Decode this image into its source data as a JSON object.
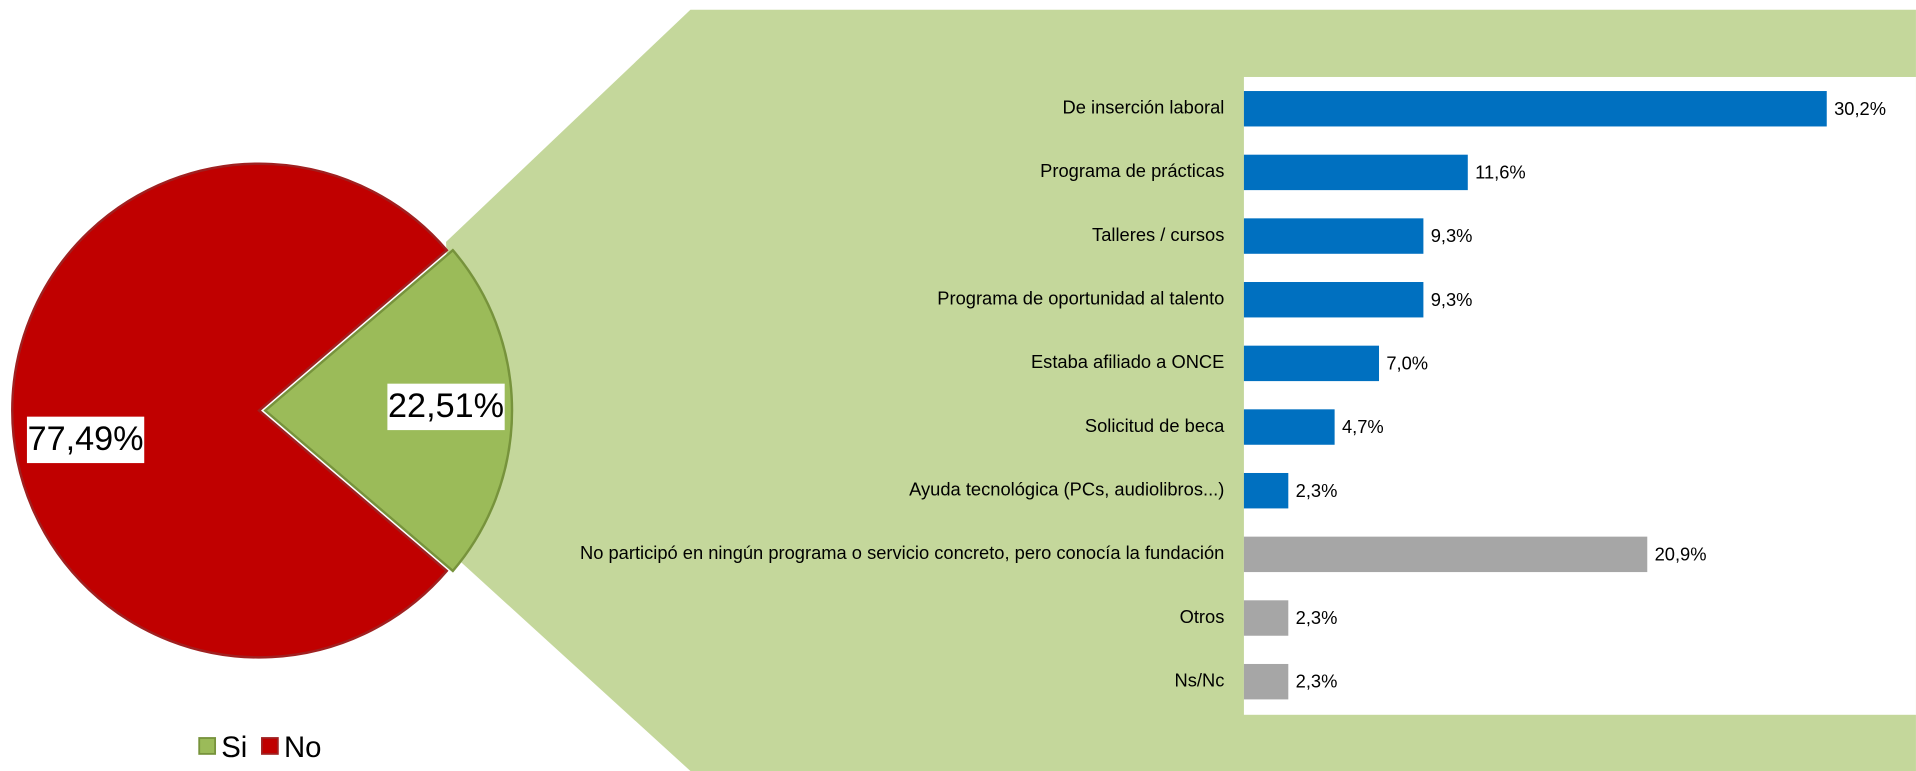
{
  "chart_data": [
    {
      "type": "pie",
      "categories": [
        "Si",
        "No"
      ],
      "values": [
        22.51,
        77.49
      ],
      "value_labels": [
        "22,51%",
        "77,49%"
      ],
      "colors": [
        "#9bbb59",
        "#c00000"
      ],
      "legend": "bottom"
    },
    {
      "type": "bar",
      "orientation": "horizontal",
      "categories": [
        "De inserción laboral",
        "Programa de prácticas",
        "Talleres / cursos",
        "Programa de oportunidad al talento",
        "Estaba afiliado a ONCE",
        "Solicitud de beca",
        "Ayuda tecnológica (PCs, audiolibros...)",
        "No participó en ningún programa o servicio concreto, pero conocía la fundación",
        "Otros",
        "Ns/Nc"
      ],
      "values": [
        30.2,
        11.6,
        9.3,
        9.3,
        7.0,
        4.7,
        2.3,
        20.9,
        2.3,
        2.3
      ],
      "value_labels": [
        "30,2%",
        "11,6%",
        "9,3%",
        "9,3%",
        "7,0%",
        "4,7%",
        "2,3%",
        "20,9%",
        "2,3%",
        "2,3%"
      ],
      "colors": [
        "#0070c0",
        "#0070c0",
        "#0070c0",
        "#0070c0",
        "#0070c0",
        "#0070c0",
        "#0070c0",
        "#a6a6a6",
        "#a6a6a6",
        "#a6a6a6"
      ]
    }
  ]
}
